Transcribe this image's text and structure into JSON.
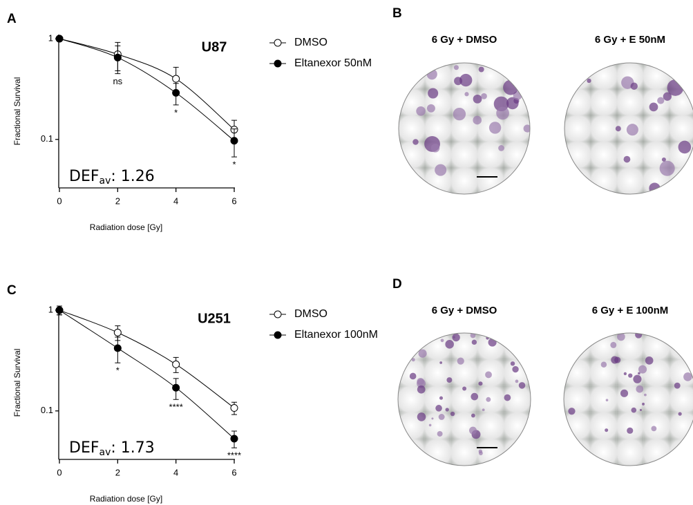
{
  "chart_data": [
    {
      "type": "line",
      "panel": "A",
      "title": "U87",
      "xlabel": "Radiation dose [Gy]",
      "ylabel": "Fractional Survival",
      "x": [
        0,
        2,
        4,
        6
      ],
      "xlim": [
        0,
        6
      ],
      "xticks": [
        0,
        2,
        4,
        6
      ],
      "ylim": [
        0.033,
        1.1
      ],
      "yticks": [
        0.1,
        1
      ],
      "log_y": true,
      "series": [
        {
          "name": "DMSO",
          "marker": "open",
          "color": "#000000",
          "values": [
            1,
            0.7,
            0.4,
            0.125
          ],
          "errors": [
            0.05,
            0.22,
            0.12,
            0.03
          ]
        },
        {
          "name": "Eltanexor 50nM",
          "marker": "filled",
          "color": "#000000",
          "values": [
            1,
            0.65,
            0.29,
            0.097
          ],
          "errors": [
            0.05,
            0.2,
            0.07,
            0.03
          ]
        }
      ],
      "annotations": [
        null,
        "ns",
        "*",
        "*"
      ],
      "def_label": {
        "text": "DEF",
        "subscript": "av",
        "value": ": 1.26"
      }
    },
    {
      "type": "line",
      "panel": "C",
      "title": "U251",
      "xlabel": "Radiation dose [Gy]",
      "ylabel": "Fractional Survival",
      "x": [
        0,
        2,
        4,
        6
      ],
      "xlim": [
        0,
        6
      ],
      "xticks": [
        0,
        2,
        4,
        6
      ],
      "ylim": [
        0.033,
        1.1
      ],
      "yticks": [
        0.1,
        1
      ],
      "log_y": true,
      "series": [
        {
          "name": "DMSO",
          "marker": "open",
          "color": "#000000",
          "values": [
            1,
            0.6,
            0.29,
            0.107
          ],
          "errors": [
            0.1,
            0.1,
            0.05,
            0.015
          ]
        },
        {
          "name": "Eltanexor 100nM",
          "marker": "filled",
          "color": "#000000",
          "values": [
            1,
            0.42,
            0.17,
            0.053
          ],
          "errors": [
            0.1,
            0.12,
            0.04,
            0.01
          ]
        }
      ],
      "annotations": [
        null,
        "*",
        "****",
        "****"
      ],
      "def_label": {
        "text": "DEF",
        "subscript": "av",
        "value": ": 1.73"
      }
    }
  ],
  "image_panels": [
    {
      "panel": "B",
      "titles": [
        "6 Gy + DMSO",
        "6 Gy + E 50nM"
      ]
    },
    {
      "panel": "D",
      "titles": [
        "6 Gy + DMSO",
        "6 Gy + E 100nM"
      ]
    }
  ]
}
